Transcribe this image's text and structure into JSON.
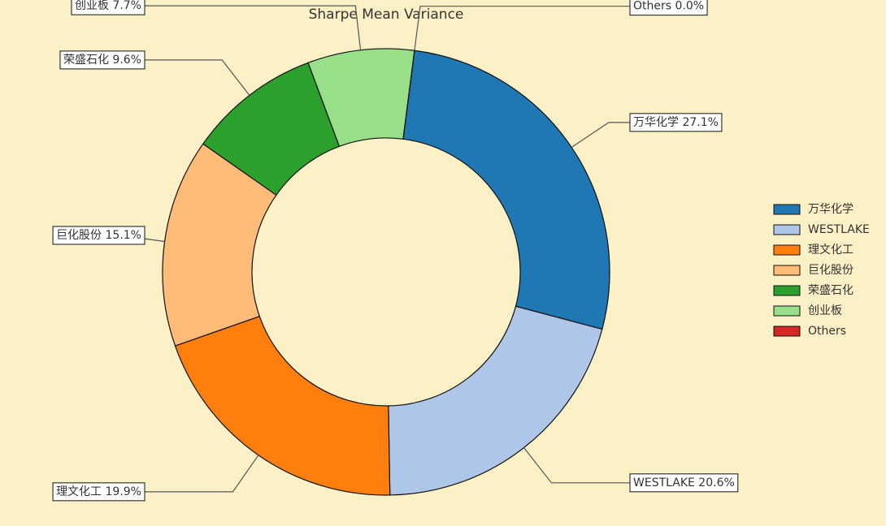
{
  "chart_data": {
    "type": "donut",
    "title": "Sharpe Mean Variance",
    "categories": [
      "万华化学",
      "WESTLAKE",
      "理文化工",
      "巨化股份",
      "荣盛石化",
      "创业板",
      "Others"
    ],
    "values": [
      27.1,
      20.6,
      19.9,
      15.1,
      9.6,
      7.7,
      0.0
    ],
    "value_labels": [
      "万华化学 27.1%",
      "WESTLAKE 20.6%",
      "理文化工 19.9%",
      "巨化股份 15.1%",
      "荣盛石化 9.6%",
      "创业板 7.7%",
      "Others 0.0%"
    ],
    "colors": [
      "#1f77b4",
      "#aec7e8",
      "#ff7f0e",
      "#ffbb78",
      "#2ca02c",
      "#98df8a",
      "#d62728"
    ],
    "legend": "right"
  }
}
